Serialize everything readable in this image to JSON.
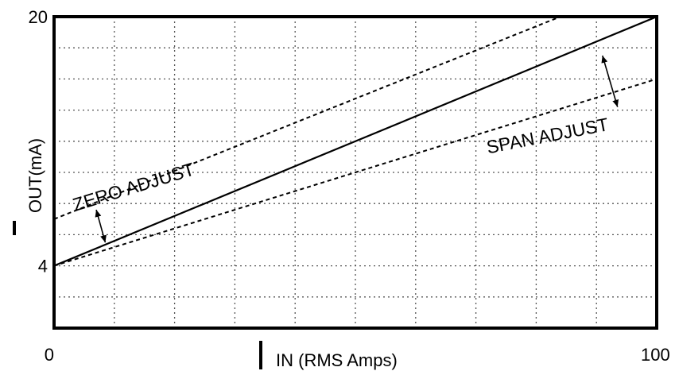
{
  "chart_data": {
    "type": "line",
    "xlabel": "IN (RMS Amps)",
    "ylabel": "OUT(mA)",
    "xlim": [
      0,
      100
    ],
    "ylim": [
      0,
      20
    ],
    "x_ticks": [
      {
        "value": 0,
        "label": "0"
      },
      {
        "value": 100,
        "label": "100"
      }
    ],
    "y_ticks": [
      {
        "value": 4,
        "label": "4"
      },
      {
        "value": 20,
        "label": "20"
      }
    ],
    "grid": true,
    "series": [
      {
        "style": "solid",
        "points": [
          [
            0,
            4
          ],
          [
            100,
            20
          ]
        ]
      },
      {
        "style": "dashed",
        "points": [
          [
            0,
            7
          ],
          [
            84,
            20
          ]
        ]
      },
      {
        "style": "dashed",
        "points": [
          [
            0,
            4
          ],
          [
            100,
            16
          ]
        ]
      }
    ],
    "annotations": [
      {
        "text": "ZERO ADJUST",
        "x": 3.5,
        "y": 7.5,
        "angle": 17
      },
      {
        "text": "SPAN ADJUST",
        "x": 72,
        "y": 11.2,
        "angle": 11
      }
    ],
    "arrows": [
      {
        "from": [
          7,
          7.6
        ],
        "to": [
          8.5,
          5.5
        ]
      },
      {
        "from": [
          91,
          17.5
        ],
        "to": [
          93.5,
          14.2
        ]
      }
    ]
  }
}
